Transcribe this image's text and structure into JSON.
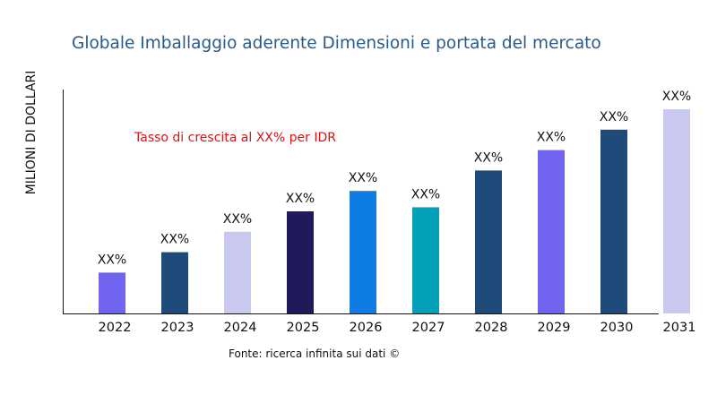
{
  "chart_data": {
    "type": "bar",
    "title": "Globale Imballaggio aderente Dimensioni e portata del mercato",
    "ylabel": "MILIONI DI DOLLARI",
    "xlabel": "",
    "annotation": "Tasso di crescita al XX% per IDR",
    "source": "Fonte: ricerca infinita sui dati ©",
    "categories": [
      "2022",
      "2023",
      "2024",
      "2025",
      "2026",
      "2027",
      "2028",
      "2029",
      "2030",
      "2031"
    ],
    "values": [
      20,
      30,
      40,
      50,
      60,
      52,
      70,
      80,
      90,
      100
    ],
    "data_labels": [
      "XX%",
      "XX%",
      "XX%",
      "XX%",
      "XX%",
      "XX%",
      "XX%",
      "XX%",
      "XX%",
      "XX%"
    ],
    "colors": [
      "#7165f0",
      "#1f4b7a",
      "#c9c9f0",
      "#1f1a5a",
      "#0f7ce6",
      "#03a1b8",
      "#1f4b7a",
      "#7165f0",
      "#1f4b7a",
      "#c9c9f0"
    ],
    "ylim": [
      0,
      100
    ],
    "grid": false,
    "legend": "none",
    "annotation_color": "#e01010"
  }
}
